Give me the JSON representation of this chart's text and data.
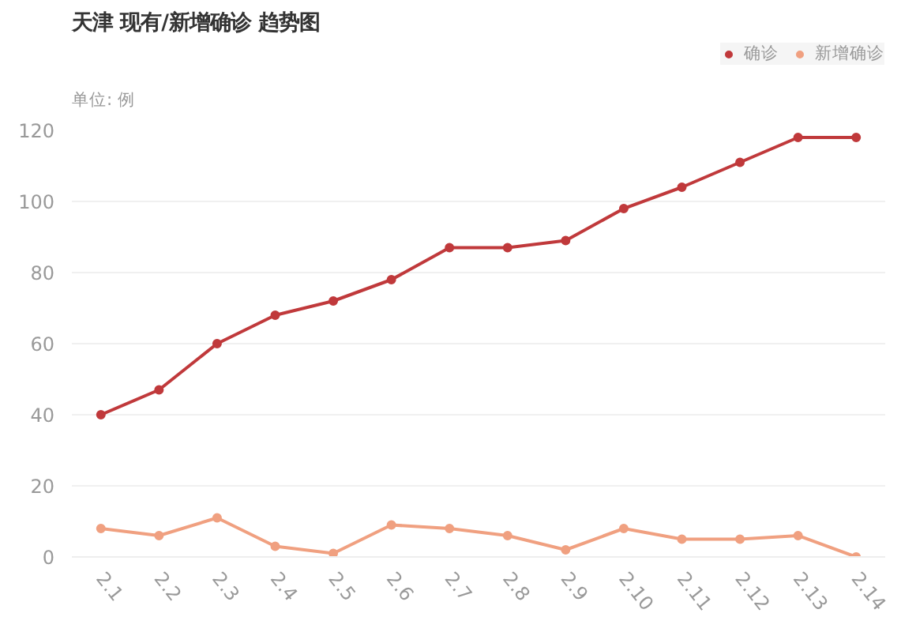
{
  "chart_data": {
    "type": "line",
    "title": "天津 现有/新增确诊 趋势图",
    "ylabel": "单位: 例",
    "categories": [
      "2.1",
      "2.2",
      "2.3",
      "2.4",
      "2.5",
      "2.6",
      "2.7",
      "2.8",
      "2.9",
      "2.10",
      "2.11",
      "2.12",
      "2.13",
      "2.14"
    ],
    "series": [
      {
        "name": "确诊",
        "color": "#c0393b",
        "values": [
          40,
          47,
          60,
          68,
          72,
          78,
          87,
          87,
          89,
          98,
          104,
          111,
          118,
          118
        ]
      },
      {
        "name": "新增确诊",
        "color": "#f0a080",
        "values": [
          8,
          6,
          11,
          3,
          1,
          9,
          8,
          6,
          2,
          8,
          5,
          5,
          6,
          0
        ]
      }
    ],
    "ylim": [
      0,
      120
    ],
    "yticks": [
      0,
      20,
      40,
      60,
      80,
      100,
      120
    ],
    "grid": "y",
    "legend": "top right",
    "marker": "circle",
    "line_style": "solid"
  }
}
